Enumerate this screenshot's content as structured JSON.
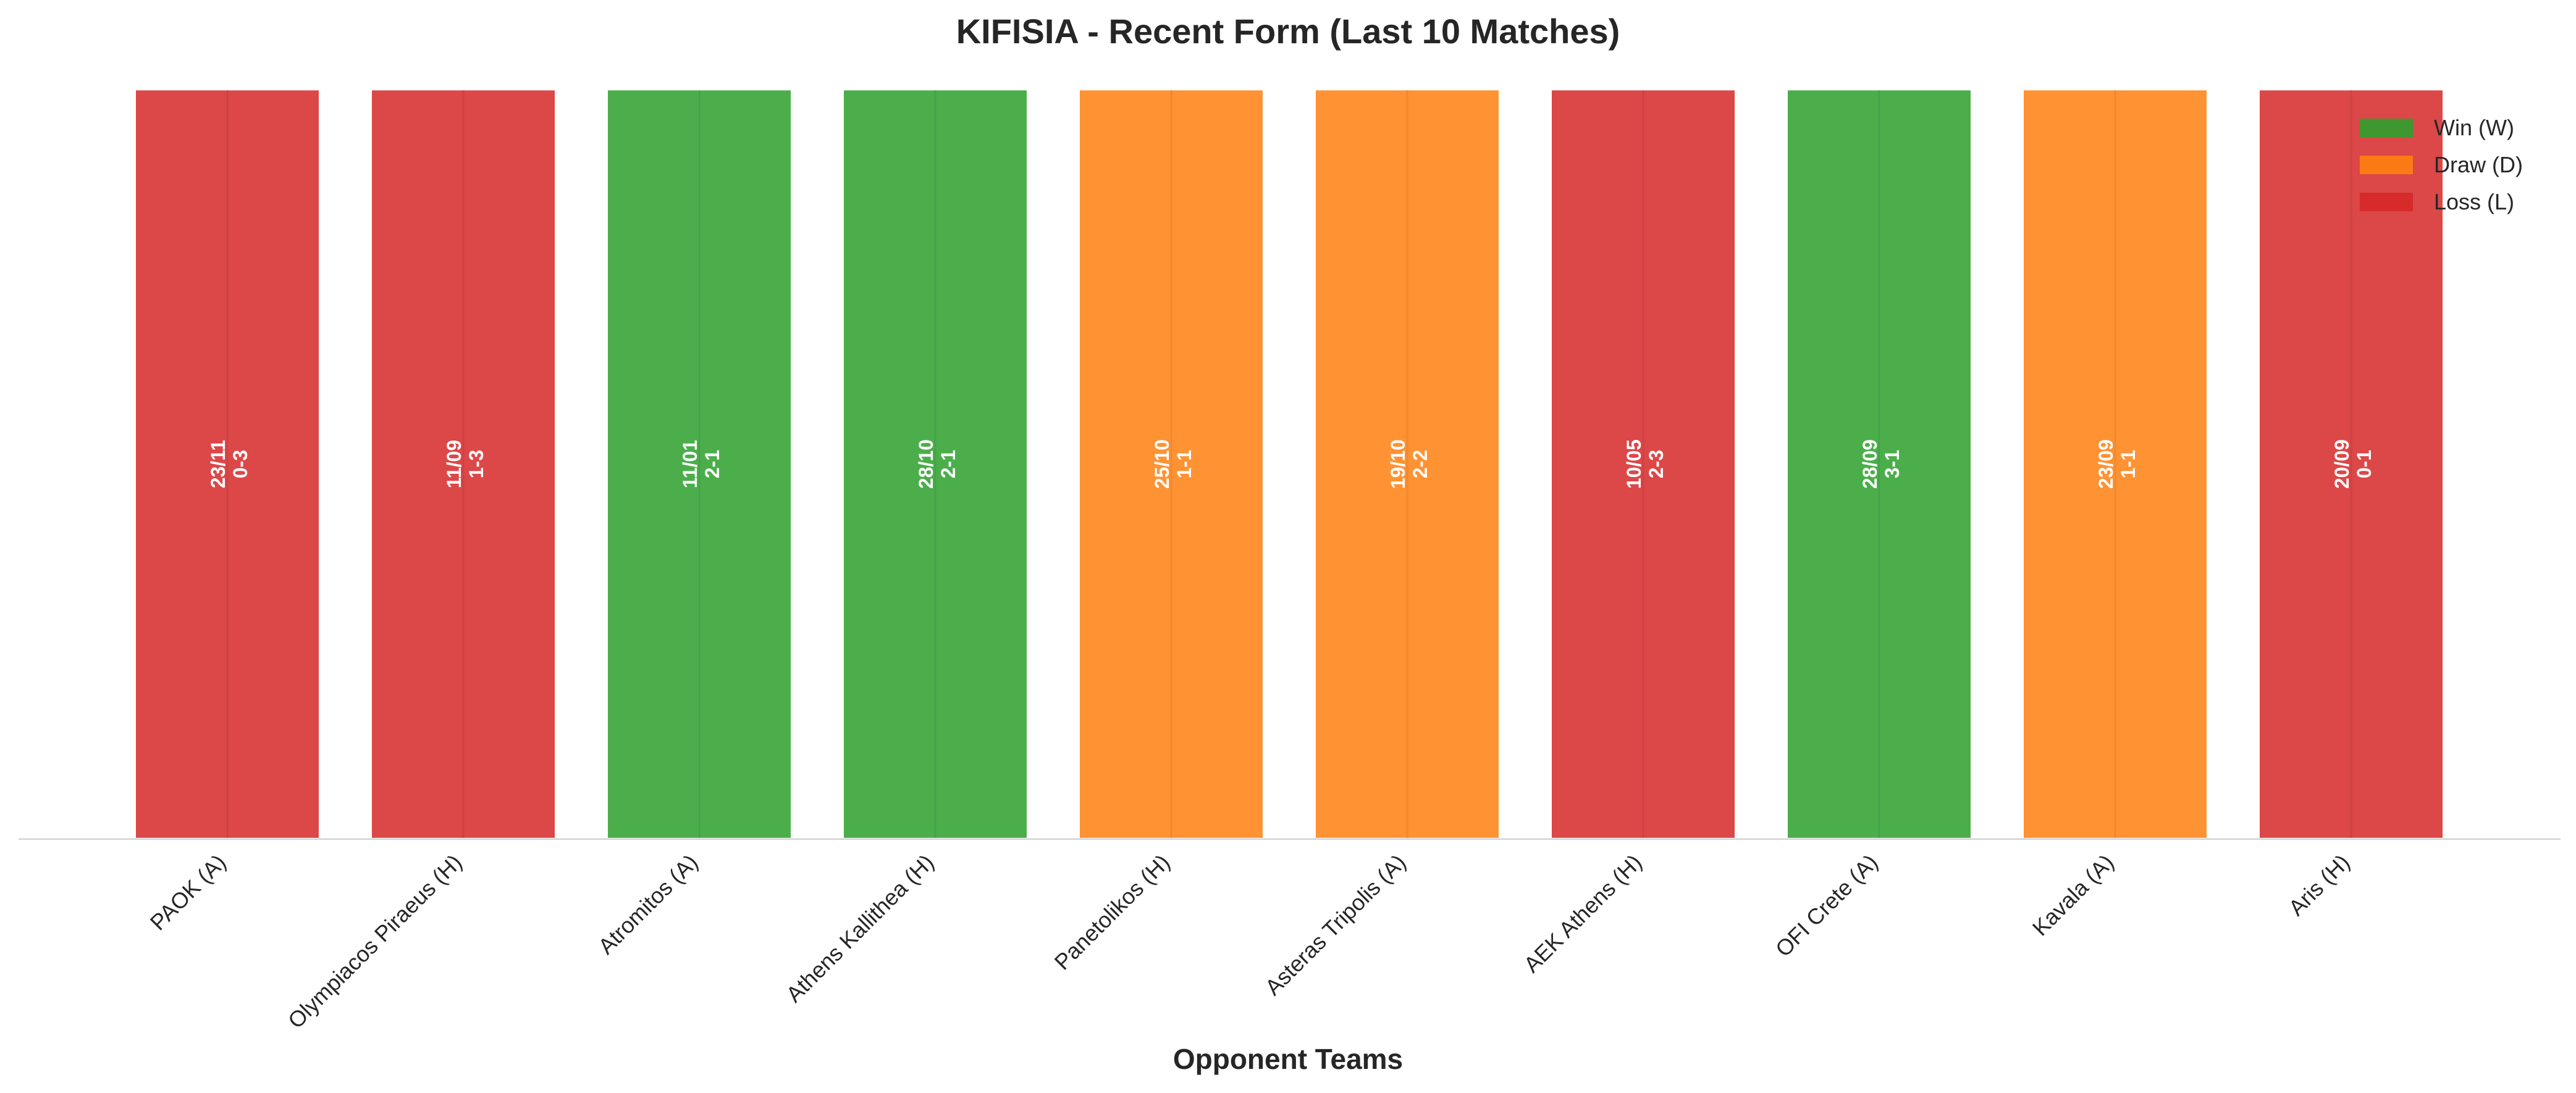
{
  "chart_data": {
    "type": "bar",
    "title": "KIFISIA - Recent Form (Last 10 Matches)",
    "xlabel": "Opponent Teams",
    "ylabel": "",
    "categories": [
      "PAOK (A)",
      "Olympiacos Piraeus (H)",
      "Atromitos (A)",
      "Athens Kallithea (H)",
      "Panetolikos (H)",
      "Asteras Tripolis (A)",
      "AEK Athens (H)",
      "OFI Crete (A)",
      "Kavala (A)",
      "Aris (H)"
    ],
    "values": [
      1,
      1,
      1,
      1,
      1,
      1,
      1,
      1,
      1,
      1
    ],
    "ylim": [
      0,
      1.02
    ],
    "results": [
      "L",
      "L",
      "W",
      "W",
      "D",
      "D",
      "L",
      "W",
      "D",
      "L"
    ],
    "dates": [
      "23/11",
      "11/09",
      "11/01",
      "28/10",
      "25/10",
      "19/10",
      "10/05",
      "28/09",
      "23/09",
      "20/09"
    ],
    "scores": [
      "0-3",
      "1-3",
      "2-1",
      "2-1",
      "1-1",
      "2-2",
      "2-3",
      "3-1",
      "1-1",
      "0-1"
    ],
    "legend": [
      {
        "key": "W",
        "label": "Win (W)",
        "color": "#2ca02c"
      },
      {
        "key": "D",
        "label": "Draw (D)",
        "color": "#ff7f0e"
      },
      {
        "key": "L",
        "label": "Loss (L)",
        "color": "#d62728"
      }
    ],
    "legend_position": "top-right",
    "grid": false
  }
}
